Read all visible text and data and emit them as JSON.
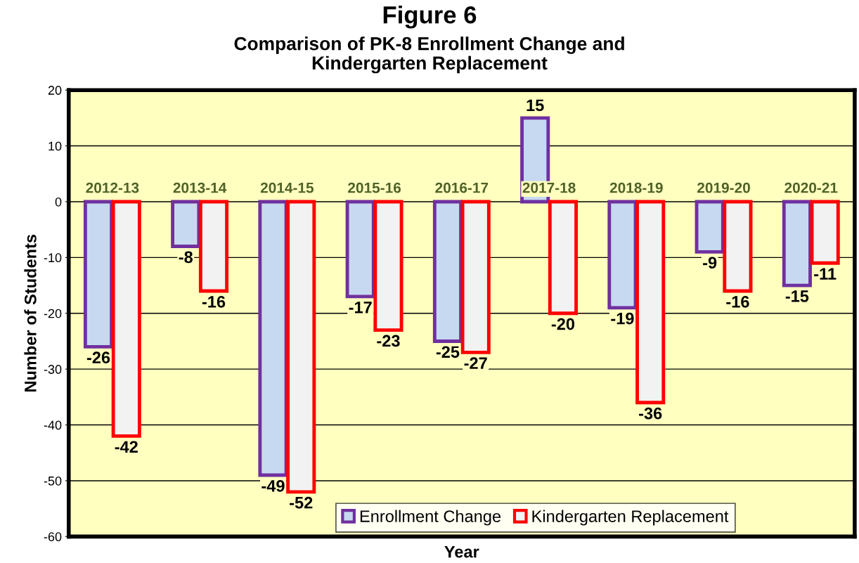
{
  "chart_data": {
    "type": "bar",
    "title": "Figure 6",
    "subtitle": "Comparison of PK-8 Enrollment Change and\nKindergarten Replacement",
    "xlabel": "Year",
    "ylabel": "Number of Students",
    "categories": [
      "2012-13",
      "2013-14",
      "2014-15",
      "2015-16",
      "2016-17",
      "2017-18",
      "2018-19",
      "2019-20",
      "2020-21"
    ],
    "series": [
      {
        "name": "Enrollment Change",
        "color": "#c6d9f0",
        "values": [
          -26,
          -8,
          -49,
          -17,
          -25,
          15,
          -19,
          -9,
          -15
        ]
      },
      {
        "name": "Kindergarten Replacement",
        "color": "#f2f2f2",
        "values": [
          -42,
          -16,
          -52,
          -23,
          -27,
          -20,
          -36,
          -16,
          -11
        ]
      }
    ],
    "ylim": [
      -60,
      20
    ],
    "yticks": [
      -60,
      -50,
      -40,
      -30,
      -20,
      -10,
      0,
      10,
      20
    ],
    "grid": "y",
    "legend": "bottom right",
    "data_labels": true
  }
}
